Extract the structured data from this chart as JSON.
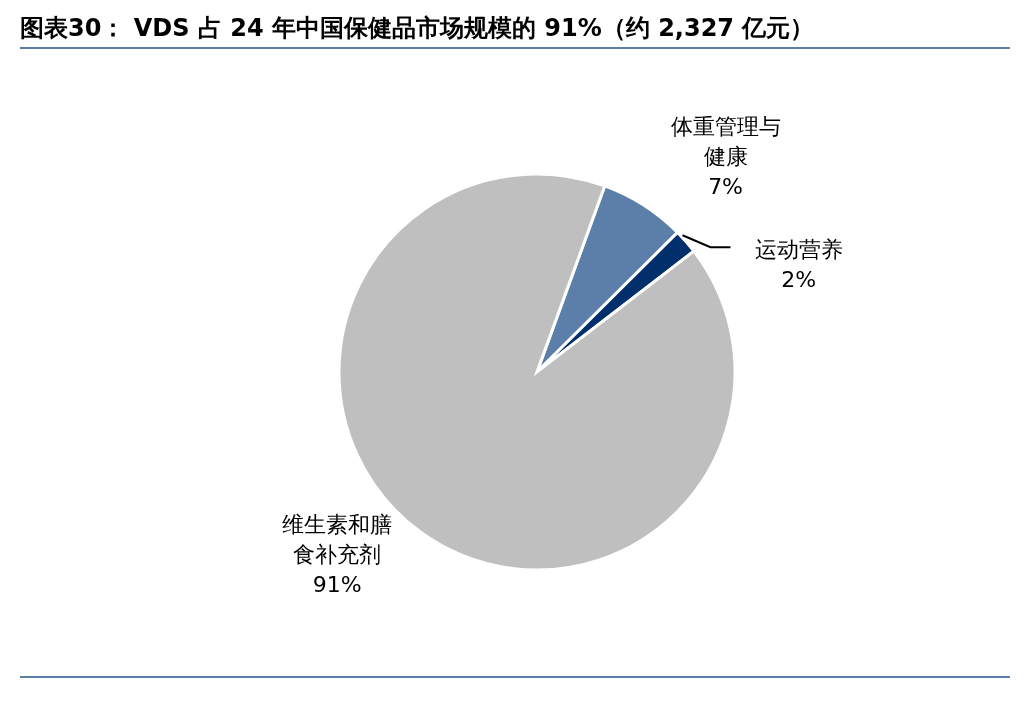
{
  "chart_data": {
    "type": "pie",
    "title": "图表30： VDS 占 24 年中国保健品市场规模的 91%（约 2,327 亿元）",
    "categories": [
      "体重管理与健康",
      "运动营养",
      "维生素和膳食补充剂"
    ],
    "values": [
      7,
      2,
      91
    ],
    "value_labels": [
      "7%",
      "2%",
      "91%"
    ],
    "colors": [
      "#5b7fa9",
      "#002f6c",
      "#bfbfbf"
    ],
    "legend": false
  }
}
